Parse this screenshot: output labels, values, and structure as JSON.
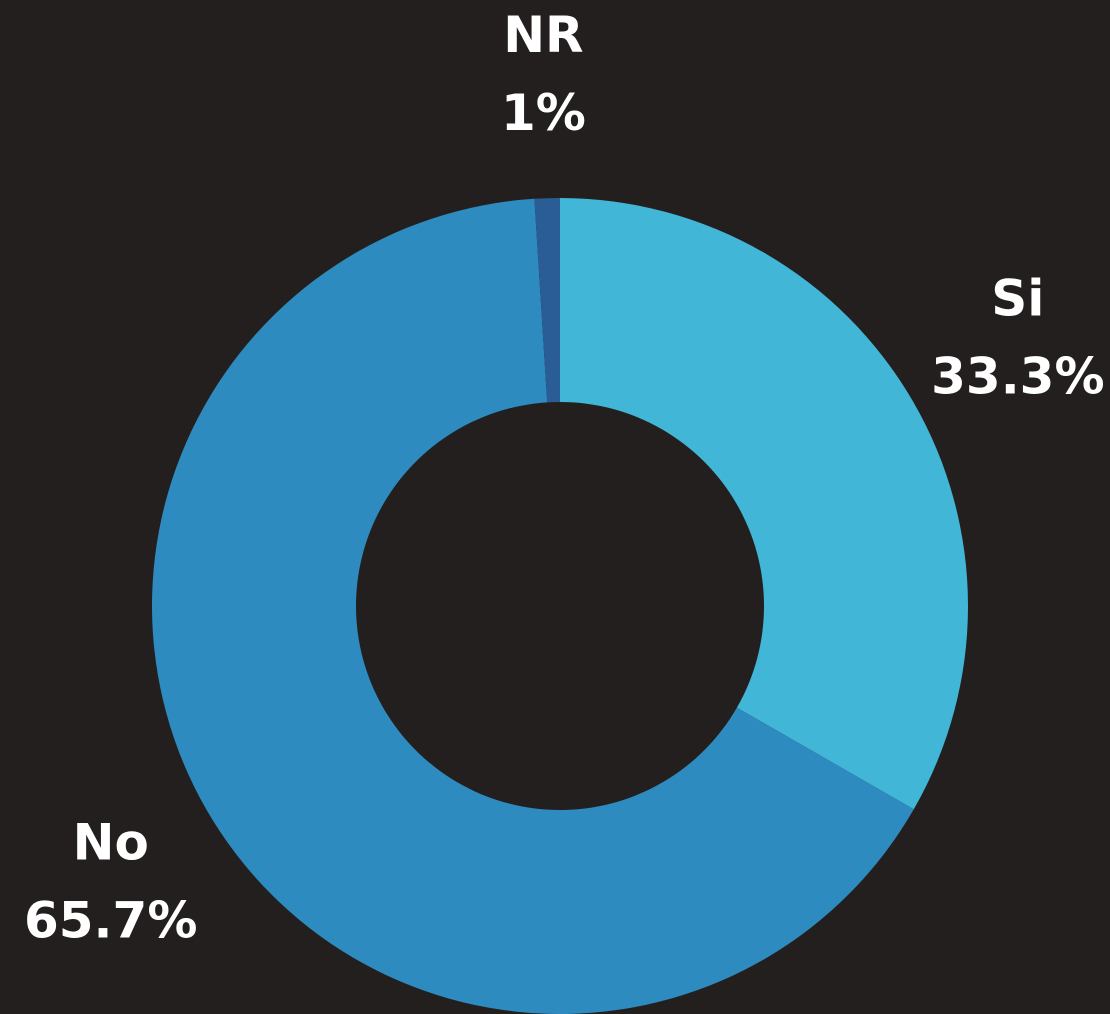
{
  "chart_data": {
    "type": "donut",
    "categories": [
      "Si",
      "No",
      "NR"
    ],
    "values": [
      33.3,
      65.7,
      1
    ],
    "value_labels": [
      "33.3%",
      "65.7%",
      "1%"
    ],
    "colors": [
      "#41b6d6",
      "#2e8bbf",
      "#2a5d96"
    ]
  }
}
